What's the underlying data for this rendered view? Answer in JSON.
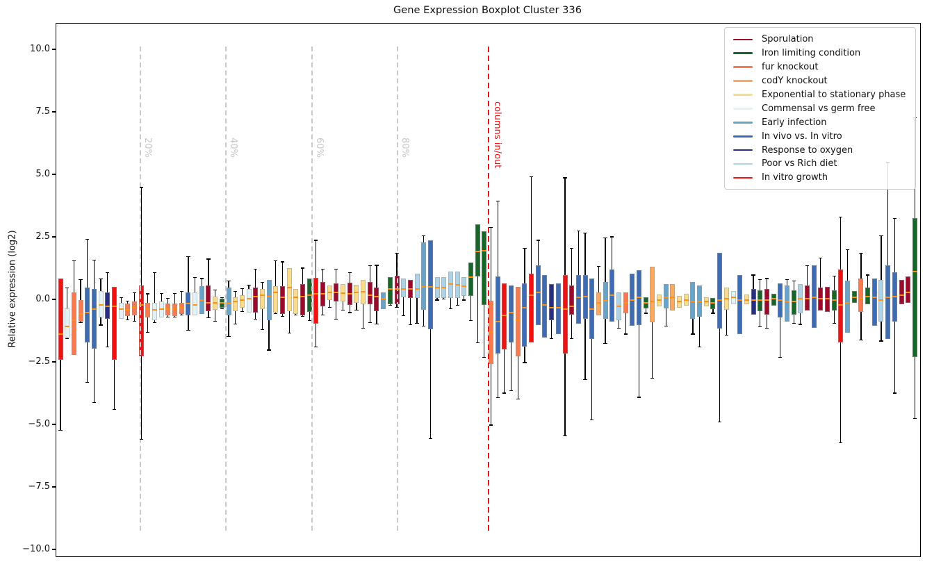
{
  "title": "Gene Expression Boxplot Cluster 336",
  "axes": {
    "ylabel": "Relative expression (log2)",
    "yticks": [
      {
        "label": "10.0",
        "value": 10
      },
      {
        "label": "7.5",
        "value": 7.5
      },
      {
        "label": "5.0",
        "value": 5
      },
      {
        "label": "2.5",
        "value": 2.5
      },
      {
        "label": "0.0",
        "value": 0
      },
      {
        "label": "−2.5",
        "value": -2.5
      },
      {
        "label": "−5.0",
        "value": -5
      },
      {
        "label": "−7.5",
        "value": -7.5
      },
      {
        "label": "−10.0",
        "value": -10
      }
    ]
  },
  "legend": {
    "items": [
      {
        "label": "Sporulation",
        "color": "#9b0a2a"
      },
      {
        "label": "Iron limiting condition",
        "color": "#176528"
      },
      {
        "label": "fur knockout",
        "color": "#f87a4e"
      },
      {
        "label": "codY knockout",
        "color": "#fba95e"
      },
      {
        "label": "Exponential to stationary phase",
        "color": "#fbdc8c"
      },
      {
        "label": "Commensal vs germ free",
        "color": "#e2f2f6"
      },
      {
        "label": "Early infection",
        "color": "#68a3ca"
      },
      {
        "label": "In vivo vs. In vitro",
        "color": "#3d6cb4"
      },
      {
        "label": "Response to oxygen",
        "color": "#272f80"
      },
      {
        "label": "Poor vs Rich diet",
        "color": "#aed3e6"
      },
      {
        "label": "In vitro growth",
        "color": "#f21111"
      }
    ]
  },
  "annotations": {
    "percent_lines": [
      {
        "label": "20%",
        "x": 200
      },
      {
        "label": "40%",
        "x": 323
      },
      {
        "label": "60%",
        "x": 447
      },
      {
        "label": "80%",
        "x": 570
      }
    ],
    "cutoff_line": {
      "label": "columns in/out",
      "x": 701,
      "color": "#e81416"
    }
  },
  "chart_data": {
    "type": "boxplot",
    "title": "Gene Expression Boxplot Cluster 336",
    "ylabel": "Relative expression (log2)",
    "ylim": [
      -10.25,
      11.05
    ],
    "grid": false,
    "legend_position": "upper right",
    "median_color": "#ff9015",
    "whisker_color": "#000000",
    "categories": [
      "Sporulation",
      "Iron limiting condition",
      "fur knockout",
      "codY knockout",
      "Exponential to stationary phase",
      "Commensal vs germ free",
      "Early infection",
      "In vivo vs. In vitro",
      "Response to oxygen",
      "Poor vs Rich diet",
      "In vitro growth"
    ],
    "category_colors": [
      "#9b0a2a",
      "#176528",
      "#f87a4e",
      "#fba95e",
      "#fbdc8c",
      "#e2f2f6",
      "#68a3ca",
      "#3d6cb4",
      "#272f80",
      "#aed3e6",
      "#f21111"
    ],
    "box_value_order": [
      "category_index",
      "whisker_low",
      "q1",
      "median",
      "q3",
      "whisker_high"
    ],
    "boxes": [
      [
        10,
        -5.2,
        -2.38,
        -1.36,
        0.86,
        0.86
      ],
      [
        5,
        -1.55,
        -1.5,
        -1.05,
        -0.34,
        0.49
      ],
      [
        2,
        -2.2,
        -2.2,
        -0.8,
        0.31,
        1.56
      ],
      [
        2,
        -0.9,
        -0.85,
        -0.55,
        0.0,
        0.81
      ],
      [
        7,
        -3.3,
        -1.7,
        -0.5,
        0.5,
        2.44
      ],
      [
        7,
        -4.1,
        -1.95,
        -0.35,
        0.45,
        1.6
      ],
      [
        5,
        -1.0,
        -0.7,
        -0.2,
        0.35,
        0.85
      ],
      [
        8,
        -1.87,
        -0.75,
        -0.25,
        0.31,
        1.09
      ],
      [
        10,
        -4.37,
        -2.38,
        -0.25,
        0.54,
        0.54
      ],
      [
        5,
        -0.75,
        -0.75,
        -0.35,
        -0.1,
        0.1
      ],
      [
        2,
        -0.8,
        -0.65,
        -0.4,
        -0.15,
        -0.05
      ],
      [
        2,
        -0.85,
        -0.6,
        -0.3,
        -0.05,
        0.3
      ],
      [
        10,
        -5.58,
        -2.24,
        -0.2,
        0.58,
        4.5
      ],
      [
        2,
        -1.3,
        -0.7,
        -0.35,
        -0.1,
        0.25
      ],
      [
        5,
        -0.9,
        -0.8,
        -0.4,
        -0.1,
        1.09
      ],
      [
        5,
        -0.7,
        -0.7,
        -0.35,
        -0.05,
        0.26
      ],
      [
        2,
        -0.67,
        -0.6,
        -0.35,
        -0.15,
        0.07
      ],
      [
        2,
        -0.69,
        -0.65,
        -0.35,
        -0.15,
        0.26
      ],
      [
        2,
        -0.6,
        -0.55,
        -0.3,
        -0.1,
        0.35
      ],
      [
        7,
        -1.2,
        -0.6,
        -0.15,
        0.3,
        1.74
      ],
      [
        5,
        -0.6,
        -0.6,
        -0.2,
        0.3,
        0.91
      ],
      [
        6,
        -0.55,
        -0.55,
        0.0,
        0.55,
        0.86
      ],
      [
        0,
        -0.7,
        -0.44,
        -0.1,
        0.58,
        1.64
      ],
      [
        4,
        -0.85,
        -0.4,
        -0.1,
        0.15,
        0.4
      ],
      [
        1,
        -0.35,
        -0.3,
        -0.1,
        0.05,
        0.1
      ],
      [
        6,
        -1.45,
        -0.6,
        -0.15,
        0.5,
        0.77
      ],
      [
        4,
        -0.95,
        -0.45,
        -0.05,
        0.1,
        0.35
      ],
      [
        4,
        -0.45,
        -0.3,
        0.0,
        0.2,
        0.45
      ],
      [
        5,
        -0.5,
        -0.5,
        0.05,
        0.44,
        0.6
      ],
      [
        0,
        -0.76,
        -0.5,
        0.15,
        0.5,
        1.23
      ],
      [
        4,
        -1.18,
        -0.35,
        0.2,
        0.45,
        0.7
      ],
      [
        6,
        -2.0,
        -0.8,
        0.15,
        0.8,
        0.8
      ],
      [
        4,
        -0.55,
        -0.5,
        0.3,
        0.55,
        1.56
      ],
      [
        0,
        -0.65,
        -0.55,
        0.1,
        0.55,
        1.53
      ],
      [
        4,
        -1.31,
        -0.44,
        0.5,
        1.28,
        1.28
      ],
      [
        4,
        -0.6,
        -0.55,
        0.1,
        0.45,
        0.45
      ],
      [
        0,
        -0.65,
        -0.6,
        0.15,
        0.65,
        1.28
      ],
      [
        1,
        -0.81,
        -0.48,
        0.2,
        0.86,
        0.86
      ],
      [
        10,
        -1.87,
        -0.95,
        0.25,
        0.9,
        2.39
      ],
      [
        0,
        -0.6,
        -0.25,
        0.26,
        0.72,
        1.23
      ],
      [
        4,
        -0.3,
        0.0,
        0.31,
        0.58,
        0.58
      ],
      [
        0,
        -0.76,
        -0.06,
        0.31,
        0.68,
        1.23
      ],
      [
        4,
        -0.4,
        -0.06,
        0.29,
        0.63,
        0.63
      ],
      [
        0,
        -0.5,
        -0.2,
        0.25,
        0.7,
        1.1
      ],
      [
        4,
        -0.4,
        -0.1,
        0.3,
        0.6,
        0.6
      ],
      [
        4,
        -1.13,
        -0.16,
        0.33,
        0.81,
        0.81
      ],
      [
        0,
        -0.9,
        -0.16,
        0.2,
        0.72,
        1.37
      ],
      [
        0,
        -0.95,
        -0.45,
        0.15,
        0.5,
        1.39
      ],
      [
        6,
        -0.35,
        -0.35,
        0.05,
        0.3,
        0.3
      ],
      [
        1,
        -0.2,
        -0.16,
        0.44,
        0.91,
        0.91
      ],
      [
        0,
        -0.3,
        -0.16,
        0.44,
        0.97,
        1.88
      ],
      [
        9,
        -0.62,
        0.12,
        0.44,
        0.86,
        0.86
      ],
      [
        0,
        -0.99,
        0.07,
        0.44,
        0.81,
        0.81
      ],
      [
        9,
        -0.94,
        0.07,
        0.44,
        1.06,
        1.06
      ],
      [
        6,
        -1.04,
        -0.39,
        0.54,
        2.3,
        2.57
      ],
      [
        7,
        -5.55,
        -1.18,
        0.54,
        2.39,
        2.39
      ],
      [
        9,
        0.0,
        0.07,
        0.49,
        0.91,
        0.91
      ],
      [
        9,
        0.05,
        0.09,
        0.5,
        0.93,
        0.93
      ],
      [
        9,
        -0.34,
        0.07,
        0.63,
        1.13,
        1.13
      ],
      [
        9,
        -0.2,
        0.09,
        0.6,
        1.13,
        1.13
      ],
      [
        9,
        0.0,
        0.16,
        0.55,
        0.91,
        0.91
      ],
      [
        1,
        -0.81,
        0.17,
        0.91,
        1.51,
        1.51
      ],
      [
        1,
        -1.7,
        0.95,
        1.95,
        3.04,
        3.04
      ],
      [
        1,
        -2.29,
        -0.2,
        1.97,
        2.76,
        2.76
      ],
      [
        2,
        -5.0,
        -2.56,
        -1.27,
        -0.02,
        2.9
      ],
      [
        7,
        -3.9,
        -2.15,
        -0.85,
        0.95,
        3.95
      ],
      [
        10,
        -3.72,
        -1.96,
        -0.61,
        0.68,
        0.68
      ],
      [
        7,
        -3.63,
        -1.69,
        -0.5,
        0.58,
        0.58
      ],
      [
        2,
        -3.95,
        -2.24,
        -0.8,
        0.54,
        0.54
      ],
      [
        7,
        -2.5,
        -1.86,
        -0.3,
        0.68,
        2.06
      ],
      [
        10,
        -1.69,
        -1.69,
        0.2,
        1.05,
        4.94
      ],
      [
        7,
        -1.0,
        -1.0,
        0.3,
        1.4,
        2.39
      ],
      [
        7,
        -1.5,
        -1.5,
        -0.2,
        1.0,
        1.0
      ],
      [
        8,
        -1.55,
        -0.81,
        -0.3,
        0.63,
        0.63
      ],
      [
        7,
        -1.36,
        -1.36,
        -0.3,
        0.68,
        0.68
      ],
      [
        10,
        -5.44,
        -2.15,
        -0.35,
        1.0,
        4.89
      ],
      [
        0,
        -1.55,
        -0.58,
        -0.25,
        0.58,
        2.06
      ],
      [
        7,
        -0.94,
        -0.94,
        0.1,
        1.0,
        2.76
      ],
      [
        7,
        -3.17,
        -0.76,
        0.15,
        1.0,
        2.67
      ],
      [
        7,
        -4.79,
        -1.55,
        -0.35,
        0.86,
        0.86
      ],
      [
        3,
        -0.62,
        -0.62,
        -0.11,
        0.31,
        1.35
      ],
      [
        6,
        -1.73,
        -0.76,
        -0.02,
        0.72,
        2.48
      ],
      [
        7,
        -0.85,
        -0.85,
        0.19,
        1.23,
        2.53
      ],
      [
        9,
        -1.13,
        -0.81,
        -0.25,
        0.31,
        0.31
      ],
      [
        2,
        -1.36,
        -0.53,
        -0.11,
        0.31,
        0.31
      ],
      [
        7,
        -1.04,
        -1.04,
        0.0,
        1.05,
        1.05
      ],
      [
        7,
        -3.89,
        -0.99,
        0.1,
        1.19,
        1.19
      ],
      [
        1,
        -0.53,
        -0.34,
        -0.1,
        0.12,
        0.12
      ],
      [
        3,
        -3.12,
        -0.9,
        -0.05,
        1.32,
        1.32
      ],
      [
        4,
        -0.25,
        -0.25,
        0.0,
        0.21,
        0.21
      ],
      [
        6,
        -1.04,
        -0.34,
        0.1,
        0.63,
        0.63
      ],
      [
        3,
        -0.42,
        -0.42,
        0.1,
        0.63,
        0.63
      ],
      [
        4,
        -0.31,
        -0.31,
        -0.05,
        0.17,
        0.17
      ],
      [
        4,
        -0.22,
        -0.22,
        0.0,
        0.26,
        0.26
      ],
      [
        6,
        -1.36,
        -0.76,
        -0.05,
        0.72,
        0.72
      ],
      [
        6,
        -1.87,
        -0.67,
        -0.05,
        0.58,
        0.58
      ],
      [
        4,
        -0.26,
        -0.26,
        -0.05,
        0.12,
        0.12
      ],
      [
        1,
        -0.53,
        -0.35,
        -0.1,
        0.08,
        0.08
      ],
      [
        7,
        -4.88,
        -1.13,
        0.0,
        1.88,
        1.88
      ],
      [
        4,
        -1.41,
        -0.38,
        0.05,
        0.49,
        0.49
      ],
      [
        5,
        -0.17,
        -0.17,
        0.1,
        0.35,
        0.35
      ],
      [
        7,
        -1.36,
        -1.36,
        0.0,
        1.0,
        1.0
      ],
      [
        4,
        -0.17,
        -0.17,
        0.0,
        0.21,
        0.21
      ],
      [
        8,
        -0.58,
        -0.58,
        0.0,
        0.44,
        1.0
      ],
      [
        1,
        -1.08,
        -0.45,
        0.0,
        0.4,
        0.81
      ],
      [
        0,
        -1.13,
        -0.58,
        0.0,
        0.44,
        0.86
      ],
      [
        1,
        -0.22,
        -0.22,
        0.05,
        0.26,
        0.26
      ],
      [
        7,
        -2.29,
        -0.69,
        0.0,
        0.68,
        0.68
      ],
      [
        6,
        -0.85,
        -0.85,
        -0.05,
        0.58,
        0.81
      ],
      [
        1,
        -0.92,
        -0.58,
        -0.05,
        0.4,
        0.76
      ],
      [
        9,
        -0.97,
        -0.53,
        0.05,
        0.63,
        0.63
      ],
      [
        0,
        -0.42,
        -0.42,
        0.05,
        0.58,
        1.37
      ],
      [
        7,
        -1.1,
        -1.1,
        0.1,
        1.4,
        1.4
      ],
      [
        0,
        -0.42,
        -0.42,
        0.05,
        0.49,
        1.69
      ],
      [
        0,
        -0.47,
        -0.47,
        0.05,
        0.53,
        0.53
      ],
      [
        1,
        -0.92,
        -0.42,
        0.0,
        0.4,
        0.95
      ],
      [
        10,
        -5.71,
        -1.69,
        -0.2,
        1.23,
        3.31
      ],
      [
        6,
        -1.31,
        -1.31,
        -0.1,
        0.77,
        2.02
      ],
      [
        1,
        -0.12,
        -0.12,
        0.1,
        0.35,
        0.35
      ],
      [
        2,
        -1.59,
        -0.47,
        0.05,
        0.86,
        1.88
      ],
      [
        1,
        -0.17,
        -0.17,
        0.15,
        0.49,
        1.0
      ],
      [
        7,
        -1.04,
        -1.04,
        0.1,
        0.86,
        0.86
      ],
      [
        9,
        -1.64,
        -0.86,
        0.0,
        0.81,
        2.57
      ],
      [
        7,
        -1.55,
        -1.55,
        0.1,
        1.4,
        5.5
      ],
      [
        7,
        -3.72,
        -0.85,
        0.15,
        1.12,
        3.27
      ],
      [
        0,
        -0.17,
        -0.17,
        0.19,
        0.81,
        0.81
      ],
      [
        0,
        -0.12,
        -0.12,
        0.3,
        0.95,
        0.95
      ],
      [
        1,
        -4.74,
        -2.29,
        1.14,
        3.27,
        7.3
      ]
    ]
  }
}
